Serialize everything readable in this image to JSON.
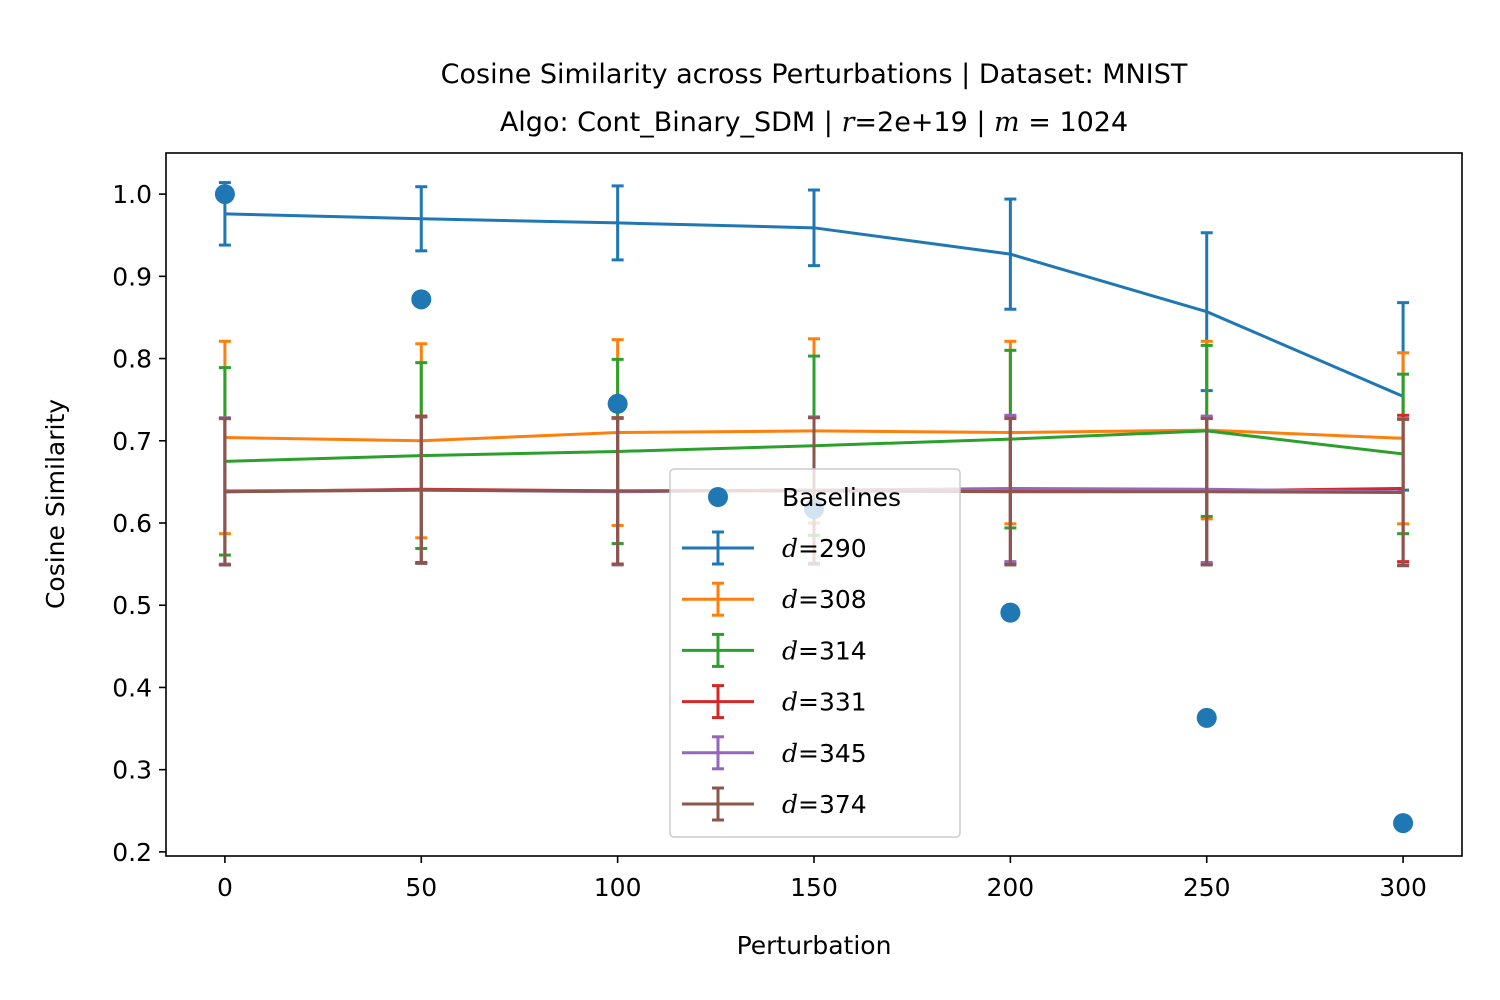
{
  "chart_data": {
    "type": "line",
    "title_line1": "Cosine Similarity across Perturbations | Dataset: MNIST",
    "title_line2_prefix": "Algo: Cont_Binary_SDM | ",
    "title_r_symbol": "r",
    "title_r_value": "=2e+19 | ",
    "title_m_symbol": "m",
    "title_m_value": " = 1024",
    "xlabel": "Perturbation",
    "ylabel": "Cosine Similarity",
    "x": [
      0,
      50,
      100,
      150,
      200,
      250,
      300
    ],
    "xlim": [
      -15,
      315
    ],
    "ylim": [
      0.195,
      1.05
    ],
    "xticks": [
      0,
      50,
      100,
      150,
      200,
      250,
      300
    ],
    "yticks": [
      0.2,
      0.3,
      0.4,
      0.5,
      0.6,
      0.7,
      0.8,
      0.9,
      1.0
    ],
    "ytick_labels": [
      "0.2",
      "0.3",
      "0.4",
      "0.5",
      "0.6",
      "0.7",
      "0.8",
      "0.9",
      "1.0"
    ],
    "grid": false,
    "legend_position": "lower-center",
    "baselines": {
      "name": "Baselines",
      "color": "#1f77b4",
      "values": [
        1.0,
        0.872,
        0.745,
        0.617,
        0.491,
        0.363,
        0.235
      ]
    },
    "series": [
      {
        "symbol": "d",
        "value_text": "=290",
        "color": "#1f77b4",
        "values": [
          0.976,
          0.97,
          0.965,
          0.959,
          0.927,
          0.857,
          0.754
        ],
        "errors": [
          0.038,
          0.039,
          0.045,
          0.046,
          0.067,
          0.096,
          0.114
        ]
      },
      {
        "symbol": "d",
        "value_text": "=308",
        "color": "#ff7f0e",
        "values": [
          0.704,
          0.7,
          0.71,
          0.712,
          0.71,
          0.713,
          0.703
        ],
        "errors": [
          0.117,
          0.118,
          0.113,
          0.112,
          0.111,
          0.108,
          0.104
        ]
      },
      {
        "symbol": "d",
        "value_text": "=314",
        "color": "#2ca02c",
        "values": [
          0.675,
          0.682,
          0.687,
          0.694,
          0.702,
          0.712,
          0.684
        ],
        "errors": [
          0.114,
          0.113,
          0.112,
          0.109,
          0.108,
          0.104,
          0.097
        ]
      },
      {
        "symbol": "d",
        "value_text": "=331",
        "color": "#d62728",
        "values": [
          0.638,
          0.641,
          0.639,
          0.64,
          0.64,
          0.639,
          0.642
        ],
        "errors": [
          0.089,
          0.089,
          0.089,
          0.089,
          0.089,
          0.089,
          0.089
        ]
      },
      {
        "symbol": "d",
        "value_text": "=345",
        "color": "#9467bd",
        "values": [
          0.639,
          0.64,
          0.638,
          0.64,
          0.642,
          0.641,
          0.638
        ],
        "errors": [
          0.089,
          0.089,
          0.089,
          0.089,
          0.089,
          0.089,
          0.089
        ]
      },
      {
        "symbol": "d",
        "value_text": "=374",
        "color": "#8c564b",
        "values": [
          0.638,
          0.64,
          0.639,
          0.639,
          0.638,
          0.638,
          0.637
        ],
        "errors": [
          0.089,
          0.089,
          0.089,
          0.089,
          0.089,
          0.089,
          0.089
        ]
      }
    ]
  }
}
